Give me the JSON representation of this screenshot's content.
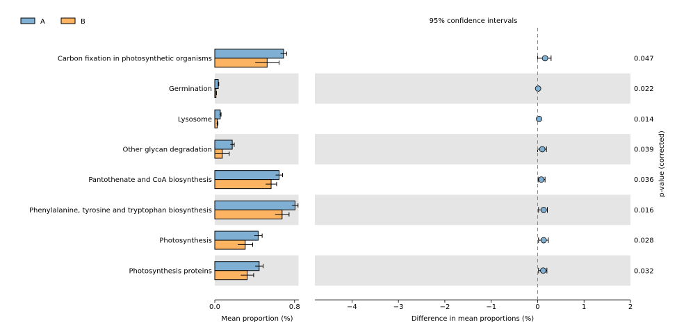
{
  "chart_data": {
    "type": "bar",
    "legend": {
      "placement": "top-left",
      "entries": [
        "A",
        "B"
      ]
    },
    "colors": {
      "A": "#7fb0d4",
      "B": "#fdb462",
      "band": "#e5e5e5",
      "edge": "#000000"
    },
    "categories": [
      "Carbon fixation in photosynthetic organisms",
      "Germination",
      "Lysosome",
      "Other glycan degradation",
      "Pantothenate and CoA biosynthesis",
      "Phenylalanine, tyrosine and tryptophan biosynthesis",
      "Photosynthesis",
      "Photosynthesis proteins"
    ],
    "left_panel": {
      "type": "bar",
      "orientation": "horizontal",
      "xlabel": "Mean proportion (%)",
      "xlim": [
        0,
        0.84
      ],
      "xticks": [
        "0.0",
        "0.8"
      ],
      "series": [
        {
          "name": "A",
          "values": [
            0.69,
            0.035,
            0.055,
            0.175,
            0.645,
            0.805,
            0.435,
            0.445
          ],
          "err": [
            0.03,
            0.005,
            0.008,
            0.02,
            0.035,
            0.03,
            0.04,
            0.04
          ]
        },
        {
          "name": "B",
          "values": [
            0.525,
            0.012,
            0.025,
            0.075,
            0.565,
            0.675,
            0.305,
            0.325
          ],
          "err": [
            0.12,
            0.005,
            0.007,
            0.07,
            0.055,
            0.07,
            0.075,
            0.065
          ]
        }
      ]
    },
    "right_panel": {
      "type": "scatter",
      "title": "95% confidence intervals",
      "xlabel": "Difference in mean proportions (%)",
      "xlim": [
        -4.8,
        2.0
      ],
      "xticks": [
        "−4",
        "−3",
        "−2",
        "−1",
        "0",
        "1",
        "2"
      ],
      "tick_values": [
        -4,
        -3,
        -2,
        -1,
        0,
        1,
        2
      ],
      "diff": [
        0.16,
        0.01,
        0.03,
        0.1,
        0.08,
        0.13,
        0.13,
        0.12
      ],
      "ci": [
        [
          0.0,
          0.29
        ],
        [
          0.0,
          0.02
        ],
        [
          0.01,
          0.05
        ],
        [
          0.0,
          0.19
        ],
        [
          0.01,
          0.16
        ],
        [
          0.02,
          0.21
        ],
        [
          0.02,
          0.23
        ],
        [
          0.02,
          0.2
        ]
      ]
    },
    "pvalue_label": "p-value (corrected)",
    "pvalues": [
      "0.047",
      "0.022",
      "0.014",
      "0.039",
      "0.036",
      "0.016",
      "0.028",
      "0.032"
    ]
  }
}
